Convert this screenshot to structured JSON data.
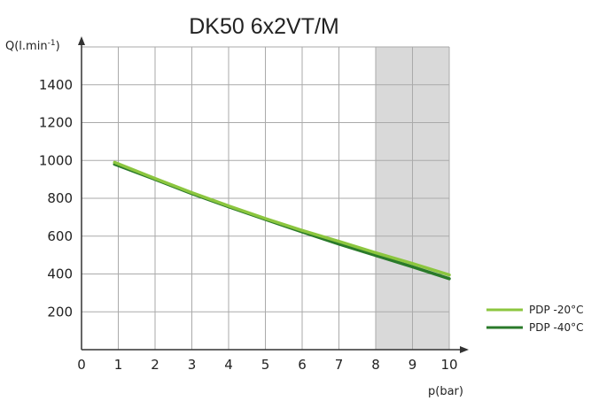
{
  "chart_data": {
    "type": "line",
    "title": "DK50 6x2VT/M",
    "xlabel": "p(bar)",
    "ylabel": "Q(l.min",
    "ylabel_sup": "-1",
    "ylabel_close": ")",
    "xlim": [
      0,
      10
    ],
    "ylim": [
      0,
      1600
    ],
    "x_ticks": [
      "0",
      "1",
      "2",
      "3",
      "4",
      "5",
      "6",
      "7",
      "8",
      "9",
      "10"
    ],
    "y_ticks": [
      "200",
      "400",
      "600",
      "800",
      "1000",
      "1200",
      "1400"
    ],
    "grid": true,
    "shaded_x_range": [
      8,
      10
    ],
    "legend_position": "bottom-right",
    "series": [
      {
        "name": "PDP -20°C",
        "color": "#8cc63f",
        "x": [
          0.9,
          2,
          3,
          4,
          5,
          6,
          7,
          8,
          9,
          10
        ],
        "y": [
          990,
          905,
          830,
          760,
          693,
          630,
          572,
          512,
          455,
          395
        ]
      },
      {
        "name": "PDP -40°C",
        "color": "#2a7a2a",
        "x": [
          0.9,
          2,
          3,
          4,
          5,
          6,
          7,
          8,
          9,
          10
        ],
        "y": [
          980,
          900,
          825,
          755,
          688,
          622,
          558,
          498,
          438,
          375
        ]
      }
    ]
  }
}
